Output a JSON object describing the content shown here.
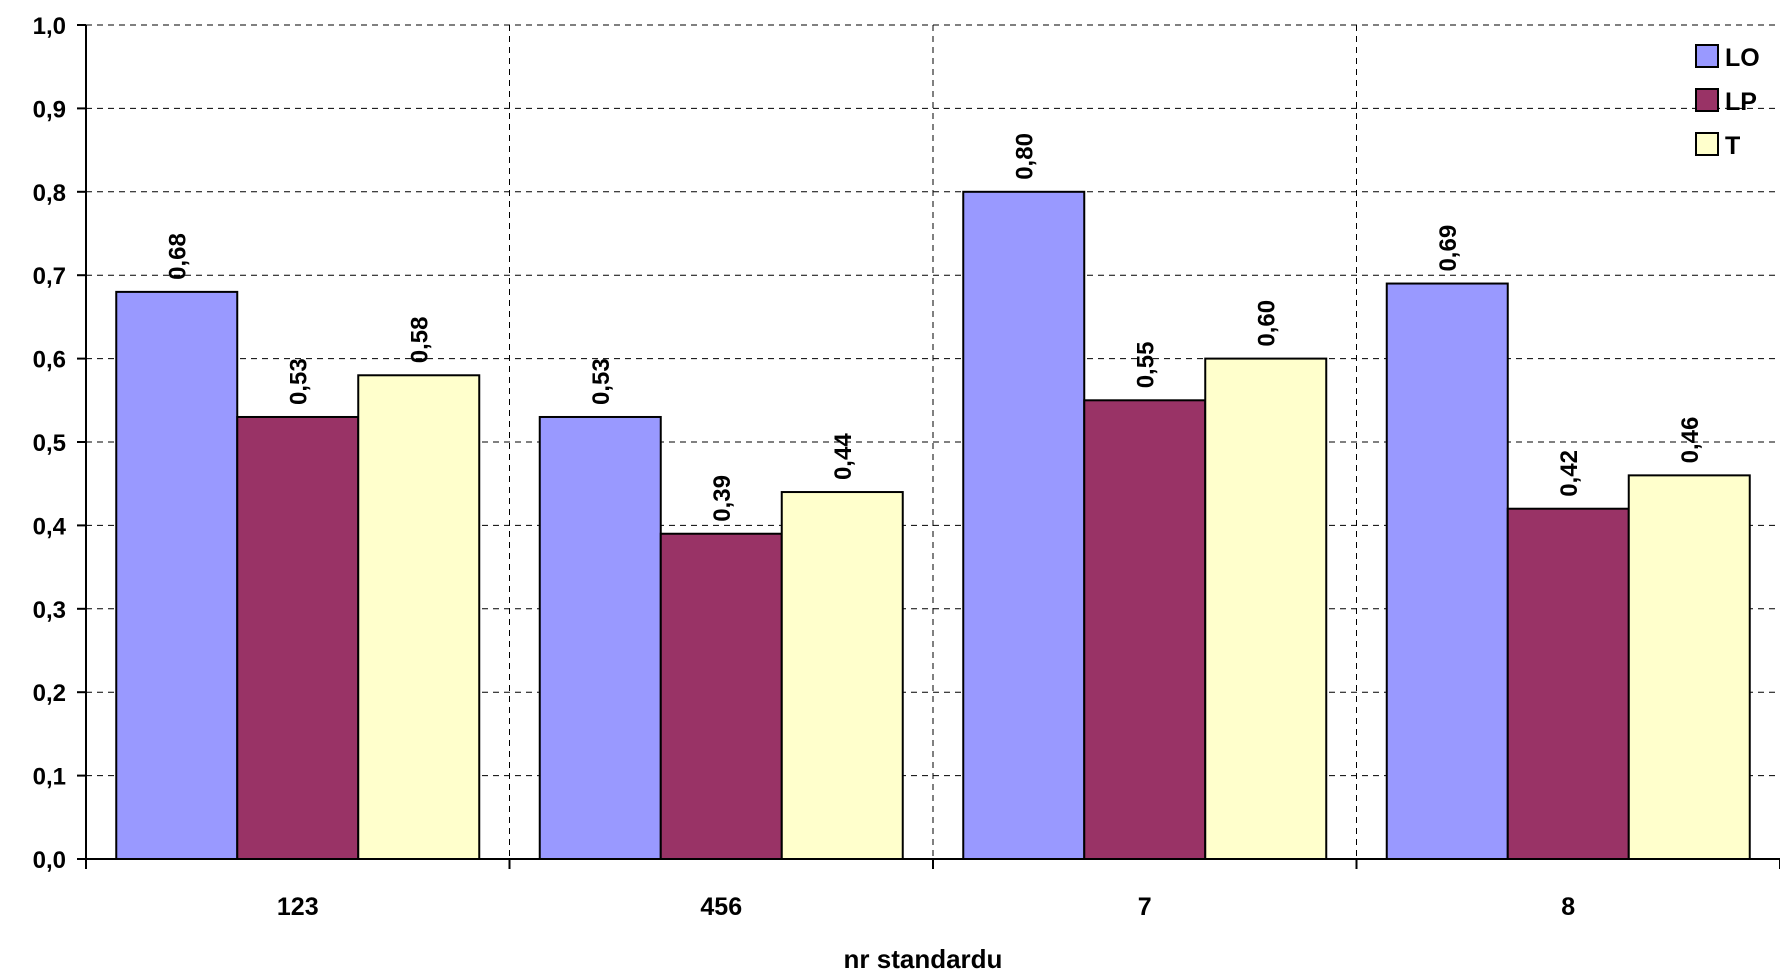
{
  "chart_data": {
    "type": "bar",
    "title": "",
    "xlabel": "nr standardu",
    "ylabel": "",
    "categories": [
      "123",
      "456",
      "7",
      "8"
    ],
    "series": [
      {
        "name": "LO",
        "color": "#9999FF",
        "values": [
          0.68,
          0.53,
          0.8,
          0.69
        ],
        "labels": [
          "0,68",
          "0,53",
          "0,80",
          "0,69"
        ]
      },
      {
        "name": "LP",
        "color": "#993366",
        "values": [
          0.53,
          0.39,
          0.55,
          0.42
        ],
        "labels": [
          "0,53",
          "0,39",
          "0,55",
          "0,42"
        ]
      },
      {
        "name": "T",
        "color": "#FFFFCC",
        "values": [
          0.58,
          0.44,
          0.6,
          0.46
        ],
        "labels": [
          "0,58",
          "0,44",
          "0,60",
          "0,46"
        ]
      }
    ],
    "ylim": [
      0,
      1.0
    ],
    "yticks": [
      0.0,
      0.1,
      0.2,
      0.3,
      0.4,
      0.5,
      0.6,
      0.7,
      0.8,
      0.9,
      1.0
    ],
    "ytick_labels": [
      "0,0",
      "0,1",
      "0,2",
      "0,3",
      "0,4",
      "0,5",
      "0,6",
      "0,7",
      "0,8",
      "0,9",
      "1,0"
    ],
    "grid": true,
    "legend_position": "top-right"
  }
}
